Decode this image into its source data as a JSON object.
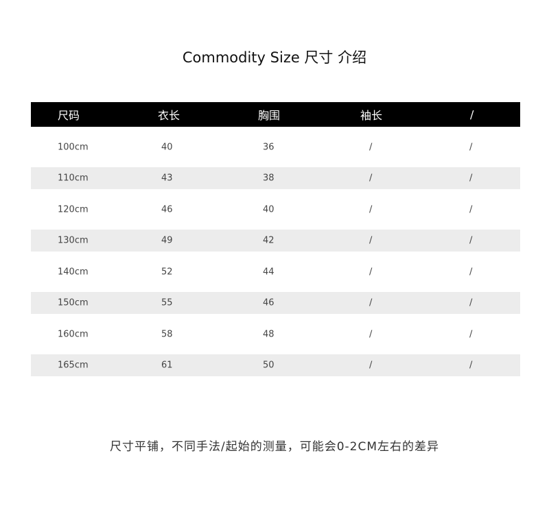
{
  "title": "Commodity Size  尺寸 介绍",
  "table": {
    "headers": [
      "尺码",
      "衣长",
      "胸围",
      "袖长",
      "/"
    ],
    "rows": [
      [
        "100cm",
        "40",
        "36",
        "/",
        "/"
      ],
      [
        "110cm",
        "43",
        "38",
        "/",
        "/"
      ],
      [
        "120cm",
        "46",
        "40",
        "/",
        "/"
      ],
      [
        "130cm",
        "49",
        "42",
        "/",
        "/"
      ],
      [
        "140cm",
        "52",
        "44",
        "/",
        "/"
      ],
      [
        "150cm",
        "55",
        "46",
        "/",
        "/"
      ],
      [
        "160cm",
        "58",
        "48",
        "/",
        "/"
      ],
      [
        "165cm",
        "61",
        "50",
        "/",
        "/"
      ]
    ]
  },
  "note": "尺寸平铺，不同手法/起始的测量，可能会0-2CM左右的差异",
  "colors": {
    "header_bg": "#000000",
    "stripe_bg": "#ececec"
  }
}
